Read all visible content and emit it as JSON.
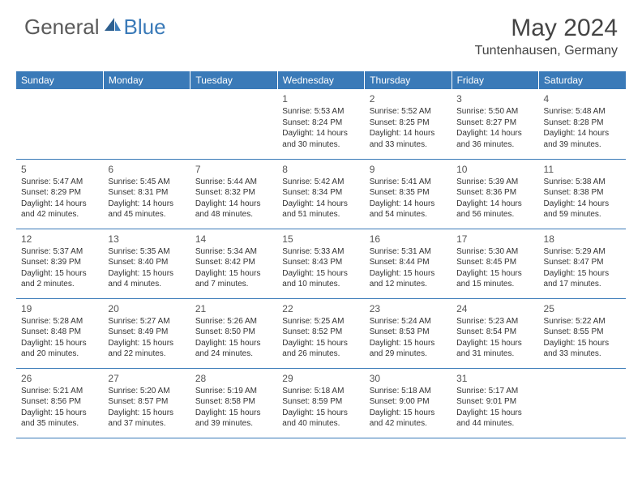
{
  "brand": {
    "part1": "General",
    "part2": "Blue"
  },
  "title": "May 2024",
  "location": "Tuntenhausen, Germany",
  "day_headers": [
    "Sunday",
    "Monday",
    "Tuesday",
    "Wednesday",
    "Thursday",
    "Friday",
    "Saturday"
  ],
  "colors": {
    "header_bg": "#3a7ab8",
    "header_fg": "#ffffff",
    "text": "#333333",
    "title": "#444444",
    "logo_gray": "#5a5a5a",
    "logo_blue": "#3a7ab8"
  },
  "weeks": [
    [
      {
        "num": "",
        "sunrise": "",
        "sunset": "",
        "daylight": ""
      },
      {
        "num": "",
        "sunrise": "",
        "sunset": "",
        "daylight": ""
      },
      {
        "num": "",
        "sunrise": "",
        "sunset": "",
        "daylight": ""
      },
      {
        "num": "1",
        "sunrise": "Sunrise: 5:53 AM",
        "sunset": "Sunset: 8:24 PM",
        "daylight": "Daylight: 14 hours and 30 minutes."
      },
      {
        "num": "2",
        "sunrise": "Sunrise: 5:52 AM",
        "sunset": "Sunset: 8:25 PM",
        "daylight": "Daylight: 14 hours and 33 minutes."
      },
      {
        "num": "3",
        "sunrise": "Sunrise: 5:50 AM",
        "sunset": "Sunset: 8:27 PM",
        "daylight": "Daylight: 14 hours and 36 minutes."
      },
      {
        "num": "4",
        "sunrise": "Sunrise: 5:48 AM",
        "sunset": "Sunset: 8:28 PM",
        "daylight": "Daylight: 14 hours and 39 minutes."
      }
    ],
    [
      {
        "num": "5",
        "sunrise": "Sunrise: 5:47 AM",
        "sunset": "Sunset: 8:29 PM",
        "daylight": "Daylight: 14 hours and 42 minutes."
      },
      {
        "num": "6",
        "sunrise": "Sunrise: 5:45 AM",
        "sunset": "Sunset: 8:31 PM",
        "daylight": "Daylight: 14 hours and 45 minutes."
      },
      {
        "num": "7",
        "sunrise": "Sunrise: 5:44 AM",
        "sunset": "Sunset: 8:32 PM",
        "daylight": "Daylight: 14 hours and 48 minutes."
      },
      {
        "num": "8",
        "sunrise": "Sunrise: 5:42 AM",
        "sunset": "Sunset: 8:34 PM",
        "daylight": "Daylight: 14 hours and 51 minutes."
      },
      {
        "num": "9",
        "sunrise": "Sunrise: 5:41 AM",
        "sunset": "Sunset: 8:35 PM",
        "daylight": "Daylight: 14 hours and 54 minutes."
      },
      {
        "num": "10",
        "sunrise": "Sunrise: 5:39 AM",
        "sunset": "Sunset: 8:36 PM",
        "daylight": "Daylight: 14 hours and 56 minutes."
      },
      {
        "num": "11",
        "sunrise": "Sunrise: 5:38 AM",
        "sunset": "Sunset: 8:38 PM",
        "daylight": "Daylight: 14 hours and 59 minutes."
      }
    ],
    [
      {
        "num": "12",
        "sunrise": "Sunrise: 5:37 AM",
        "sunset": "Sunset: 8:39 PM",
        "daylight": "Daylight: 15 hours and 2 minutes."
      },
      {
        "num": "13",
        "sunrise": "Sunrise: 5:35 AM",
        "sunset": "Sunset: 8:40 PM",
        "daylight": "Daylight: 15 hours and 4 minutes."
      },
      {
        "num": "14",
        "sunrise": "Sunrise: 5:34 AM",
        "sunset": "Sunset: 8:42 PM",
        "daylight": "Daylight: 15 hours and 7 minutes."
      },
      {
        "num": "15",
        "sunrise": "Sunrise: 5:33 AM",
        "sunset": "Sunset: 8:43 PM",
        "daylight": "Daylight: 15 hours and 10 minutes."
      },
      {
        "num": "16",
        "sunrise": "Sunrise: 5:31 AM",
        "sunset": "Sunset: 8:44 PM",
        "daylight": "Daylight: 15 hours and 12 minutes."
      },
      {
        "num": "17",
        "sunrise": "Sunrise: 5:30 AM",
        "sunset": "Sunset: 8:45 PM",
        "daylight": "Daylight: 15 hours and 15 minutes."
      },
      {
        "num": "18",
        "sunrise": "Sunrise: 5:29 AM",
        "sunset": "Sunset: 8:47 PM",
        "daylight": "Daylight: 15 hours and 17 minutes."
      }
    ],
    [
      {
        "num": "19",
        "sunrise": "Sunrise: 5:28 AM",
        "sunset": "Sunset: 8:48 PM",
        "daylight": "Daylight: 15 hours and 20 minutes."
      },
      {
        "num": "20",
        "sunrise": "Sunrise: 5:27 AM",
        "sunset": "Sunset: 8:49 PM",
        "daylight": "Daylight: 15 hours and 22 minutes."
      },
      {
        "num": "21",
        "sunrise": "Sunrise: 5:26 AM",
        "sunset": "Sunset: 8:50 PM",
        "daylight": "Daylight: 15 hours and 24 minutes."
      },
      {
        "num": "22",
        "sunrise": "Sunrise: 5:25 AM",
        "sunset": "Sunset: 8:52 PM",
        "daylight": "Daylight: 15 hours and 26 minutes."
      },
      {
        "num": "23",
        "sunrise": "Sunrise: 5:24 AM",
        "sunset": "Sunset: 8:53 PM",
        "daylight": "Daylight: 15 hours and 29 minutes."
      },
      {
        "num": "24",
        "sunrise": "Sunrise: 5:23 AM",
        "sunset": "Sunset: 8:54 PM",
        "daylight": "Daylight: 15 hours and 31 minutes."
      },
      {
        "num": "25",
        "sunrise": "Sunrise: 5:22 AM",
        "sunset": "Sunset: 8:55 PM",
        "daylight": "Daylight: 15 hours and 33 minutes."
      }
    ],
    [
      {
        "num": "26",
        "sunrise": "Sunrise: 5:21 AM",
        "sunset": "Sunset: 8:56 PM",
        "daylight": "Daylight: 15 hours and 35 minutes."
      },
      {
        "num": "27",
        "sunrise": "Sunrise: 5:20 AM",
        "sunset": "Sunset: 8:57 PM",
        "daylight": "Daylight: 15 hours and 37 minutes."
      },
      {
        "num": "28",
        "sunrise": "Sunrise: 5:19 AM",
        "sunset": "Sunset: 8:58 PM",
        "daylight": "Daylight: 15 hours and 39 minutes."
      },
      {
        "num": "29",
        "sunrise": "Sunrise: 5:18 AM",
        "sunset": "Sunset: 8:59 PM",
        "daylight": "Daylight: 15 hours and 40 minutes."
      },
      {
        "num": "30",
        "sunrise": "Sunrise: 5:18 AM",
        "sunset": "Sunset: 9:00 PM",
        "daylight": "Daylight: 15 hours and 42 minutes."
      },
      {
        "num": "31",
        "sunrise": "Sunrise: 5:17 AM",
        "sunset": "Sunset: 9:01 PM",
        "daylight": "Daylight: 15 hours and 44 minutes."
      },
      {
        "num": "",
        "sunrise": "",
        "sunset": "",
        "daylight": ""
      }
    ]
  ]
}
